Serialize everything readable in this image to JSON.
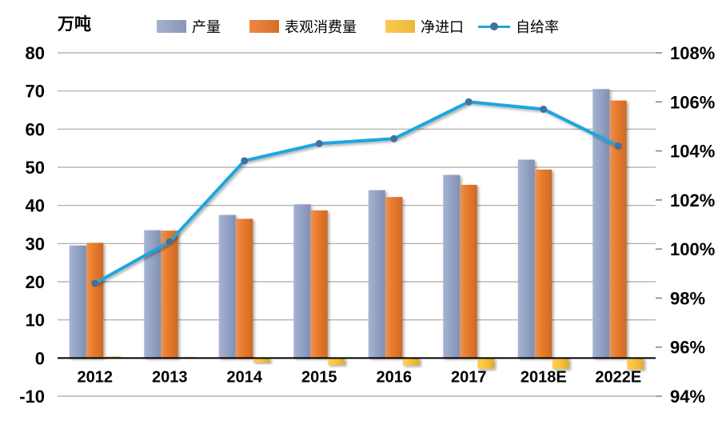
{
  "chart_data": {
    "type": "bar+line",
    "unit_label": "万吨",
    "categories": [
      "2012",
      "2013",
      "2014",
      "2015",
      "2016",
      "2017",
      "2018E",
      "2022E"
    ],
    "series": [
      {
        "name": "产量",
        "type": "bar",
        "axis": "left",
        "color": "#94A3C7",
        "values": [
          29.5,
          33.5,
          37.5,
          40.3,
          44.0,
          48.0,
          52.0,
          70.5
        ]
      },
      {
        "name": "表观消费量",
        "type": "bar",
        "axis": "left",
        "color": "#E8792B",
        "values": [
          30.2,
          33.4,
          36.5,
          38.7,
          42.2,
          45.4,
          49.4,
          67.5
        ]
      },
      {
        "name": "净进口",
        "type": "bar",
        "axis": "left",
        "color": "#FBC33C",
        "values": [
          0.4,
          0.1,
          -1.2,
          -1.8,
          -1.9,
          -2.8,
          -2.8,
          -3.0
        ]
      },
      {
        "name": "自给率",
        "type": "line",
        "axis": "right",
        "color": "#1FA6DE",
        "marker_color": "#41719C",
        "values": [
          98.6,
          100.3,
          103.6,
          104.3,
          104.5,
          106.0,
          105.7,
          104.2
        ]
      }
    ],
    "left_axis": {
      "min": -10,
      "max": 80,
      "step": 10,
      "ticks": [
        80,
        70,
        60,
        50,
        40,
        30,
        20,
        10,
        0,
        -10
      ],
      "labels": [
        "80",
        "70",
        "60",
        "50",
        "40",
        "30",
        "20",
        "10",
        "0",
        "-10"
      ]
    },
    "right_axis": {
      "min": 94,
      "max": 108,
      "step": 2,
      "ticks": [
        108,
        106,
        104,
        102,
        100,
        98,
        96,
        94
      ],
      "labels": [
        "108%",
        "106%",
        "104%",
        "102%",
        "100%",
        "98%",
        "96%",
        "94%"
      ]
    },
    "grid": true,
    "legend_position": "top",
    "colors": {
      "gridline": "#A6A6A6",
      "zero_axis": "#000000",
      "tick": "#7F7F7F",
      "text": "#000000"
    }
  }
}
